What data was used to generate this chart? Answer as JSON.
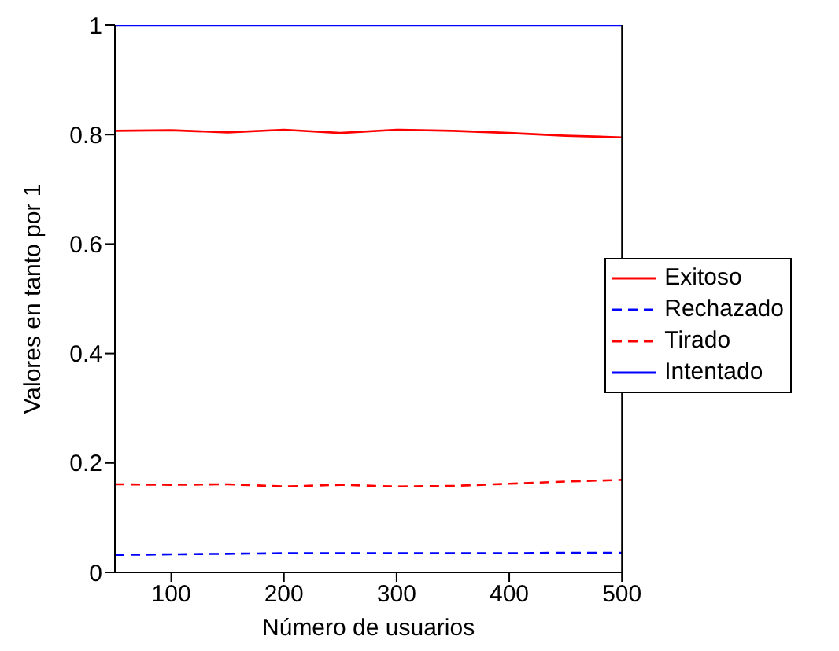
{
  "chart_data": {
    "type": "line",
    "xlabel": "Número de usuarios",
    "ylabel": "Valores en tanto por 1",
    "x": [
      50,
      100,
      150,
      200,
      250,
      300,
      350,
      400,
      450,
      500
    ],
    "series": [
      {
        "name": "Exitoso",
        "color": "#ff0000",
        "line_style": "solid",
        "values": [
          0.807,
          0.808,
          0.804,
          0.809,
          0.803,
          0.809,
          0.807,
          0.803,
          0.798,
          0.795
        ]
      },
      {
        "name": "Rechazado",
        "color": "#0000ff",
        "line_style": "dashed",
        "values": [
          0.032,
          0.033,
          0.034,
          0.035,
          0.035,
          0.035,
          0.035,
          0.035,
          0.036,
          0.036
        ]
      },
      {
        "name": "Tirado",
        "color": "#ff0000",
        "line_style": "dashed",
        "values": [
          0.161,
          0.16,
          0.161,
          0.157,
          0.16,
          0.157,
          0.158,
          0.162,
          0.166,
          0.169
        ]
      },
      {
        "name": "Intentado",
        "color": "#0000ff",
        "line_style": "solid",
        "values": [
          1,
          1,
          1,
          1,
          1,
          1,
          1,
          1,
          1,
          1
        ]
      }
    ],
    "xlim": [
      50,
      500
    ],
    "xticks": [
      100,
      200,
      300,
      400,
      500
    ],
    "ylim": [
      0,
      1
    ],
    "yticks": [
      0,
      {
        "value": 0.2,
        "label": "0.2"
      },
      {
        "value": 0.4,
        "label": "0.4"
      },
      {
        "value": 0.6,
        "label": "0.6"
      },
      {
        "value": 0.8,
        "label": "0.8"
      },
      1
    ],
    "grid": false,
    "legend": "right",
    "marker": "none"
  }
}
